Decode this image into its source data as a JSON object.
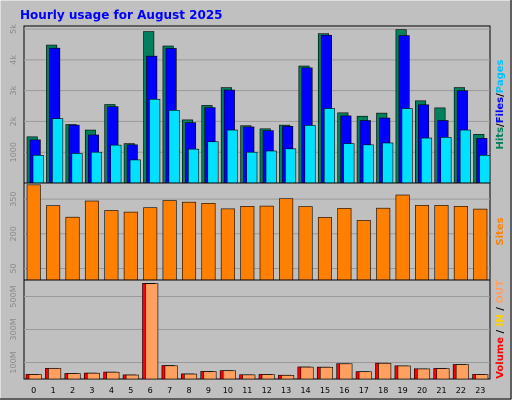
{
  "chart_data": {
    "type": "bar",
    "title": "Hourly usage for August 2025",
    "categories": [
      "0",
      "1",
      "2",
      "3",
      "4",
      "5",
      "6",
      "7",
      "8",
      "9",
      "10",
      "11",
      "12",
      "13",
      "14",
      "15",
      "16",
      "17",
      "18",
      "19",
      "20",
      "21",
      "22",
      "23"
    ],
    "panels": [
      {
        "id": "hits",
        "y_ticks": [
          "1000",
          "2k",
          "3k",
          "4k",
          "5k"
        ],
        "ylim": [
          0,
          5100
        ],
        "side_label_parts": [
          {
            "text": "Hits",
            "color": "#00805c"
          },
          {
            "text": "/",
            "color": "#000000"
          },
          {
            "text": "Files",
            "color": "#0000ff"
          },
          {
            "text": "/",
            "color": "#000000"
          },
          {
            "text": "Pages",
            "color": "#00c0ff"
          }
        ],
        "series": [
          {
            "name": "Hits",
            "color": "#00805c",
            "values": [
              1500,
              4480,
              1900,
              1720,
              2550,
              1280,
              4920,
              4450,
              2050,
              2520,
              3100,
              1860,
              1760,
              1880,
              3800,
              4850,
              2280,
              2170,
              2270,
              4980,
              2670,
              2440,
              3100,
              1580
            ]
          },
          {
            "name": "Files",
            "color": "#0000ff",
            "values": [
              1400,
              4380,
              1880,
              1560,
              2480,
              1240,
              4120,
              4370,
              1960,
              2450,
              3020,
              1820,
              1700,
              1840,
              3740,
              4800,
              2180,
              2030,
              2110,
              4790,
              2540,
              2030,
              3000,
              1450
            ]
          },
          {
            "name": "Pages",
            "color": "#00e0ff",
            "values": [
              900,
              2090,
              960,
              1000,
              1230,
              750,
              2720,
              2360,
              1100,
              1340,
              1720,
              1000,
              1040,
              1110,
              1870,
              2420,
              1280,
              1240,
              1300,
              2420,
              1460,
              1480,
              1720,
              900
            ]
          }
        ]
      },
      {
        "id": "sites",
        "y_ticks": [
          "50",
          "200",
          "350"
        ],
        "ylim": [
          0,
          420
        ],
        "side_label_parts": [
          {
            "text": "Sites",
            "color": "#ff8000"
          }
        ],
        "series": [
          {
            "name": "Sites",
            "color": "#ff8000",
            "values": [
              412,
              322,
              272,
              342,
              301,
              294,
              313,
              344,
              337,
              332,
              308,
              319,
              320,
              352,
              318,
              271,
              310,
              258,
              311,
              368,
              323,
              323,
              319,
              307
            ]
          }
        ]
      },
      {
        "id": "volume",
        "y_ticks": [
          "100M",
          "300M",
          "500M"
        ],
        "ylim": [
          0,
          600
        ],
        "side_label_parts": [
          {
            "text": "Volume",
            "color": "#ff0000"
          },
          {
            "text": " / ",
            "color": "#000000"
          },
          {
            "text": "IN",
            "color": "#ffd000"
          },
          {
            "text": " / ",
            "color": "#000000"
          },
          {
            "text": "OUT",
            "color": "#ffa060"
          }
        ],
        "series": [
          {
            "name": "Volume",
            "color": "#ff0000",
            "values": [
              28,
              65,
              34,
              36,
              42,
              25,
              580,
              82,
              31,
              46,
              51,
              26,
              28,
              23,
              73,
              72,
              93,
              45,
              96,
              80,
              62,
              64,
              88,
              28
            ]
          },
          {
            "name": "OUT",
            "color": "#ffa060",
            "values": [
              27,
              64,
              33,
              35,
              41,
              24,
              578,
              80,
              30,
              45,
              50,
              25,
              27,
              22,
              72,
              71,
              92,
              44,
              95,
              79,
              61,
              63,
              87,
              27
            ]
          }
        ]
      }
    ]
  }
}
